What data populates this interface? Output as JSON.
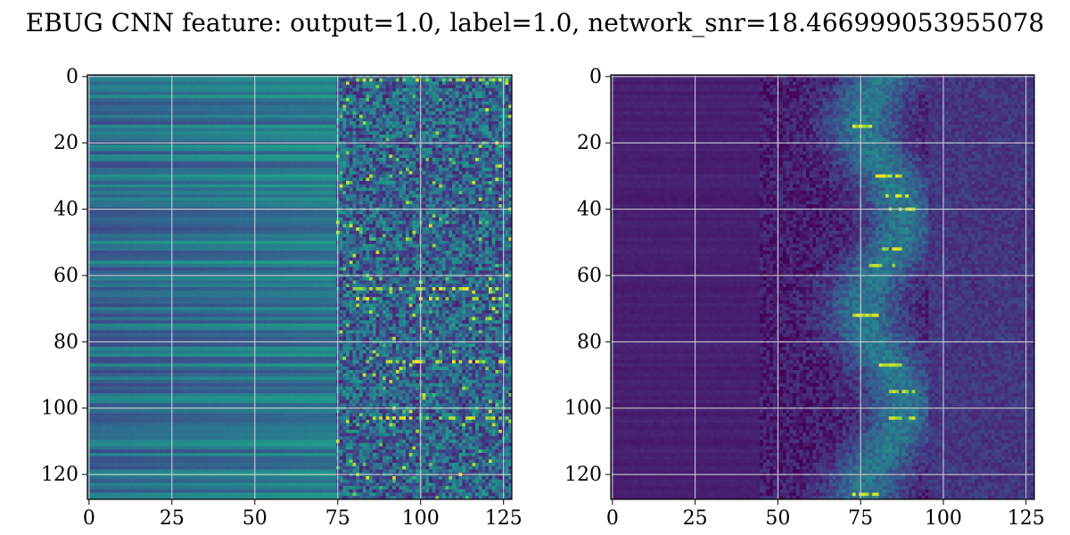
{
  "figure": {
    "title": "EBUG CNN feature: output=1.0, label=1.0, network_snr=18.466999053955078"
  },
  "chart_data": [
    {
      "type": "heatmap",
      "colormap": "viridis",
      "rows": 128,
      "cols": 128,
      "xlim": [
        0,
        127
      ],
      "ylim": [
        127,
        0
      ],
      "xticks": [
        0,
        25,
        50,
        75,
        100,
        125
      ],
      "yticks": [
        0,
        20,
        40,
        60,
        80,
        100,
        120
      ],
      "grid": true,
      "pattern": {
        "smooth_until_col": 75,
        "left_level": 0.35,
        "noisy_level": 0.32,
        "bright_rows": [
          1,
          64,
          67,
          86,
          103
        ],
        "bright_band_cols": [
          80,
          125
        ]
      }
    },
    {
      "type": "heatmap",
      "colormap": "viridis",
      "rows": 128,
      "cols": 128,
      "xlim": [
        0,
        127
      ],
      "ylim": [
        127,
        0
      ],
      "xticks": [
        0,
        25,
        50,
        75,
        100,
        125
      ],
      "yticks": [
        0,
        20,
        40,
        60,
        80,
        100,
        120
      ],
      "grid": true,
      "pattern": {
        "dark_until_col": 45,
        "feature_center_col": 82,
        "feature_width": 8,
        "bright_rows": [
          15,
          30,
          36,
          40,
          52,
          57,
          72,
          87,
          95,
          103,
          126
        ]
      }
    }
  ]
}
